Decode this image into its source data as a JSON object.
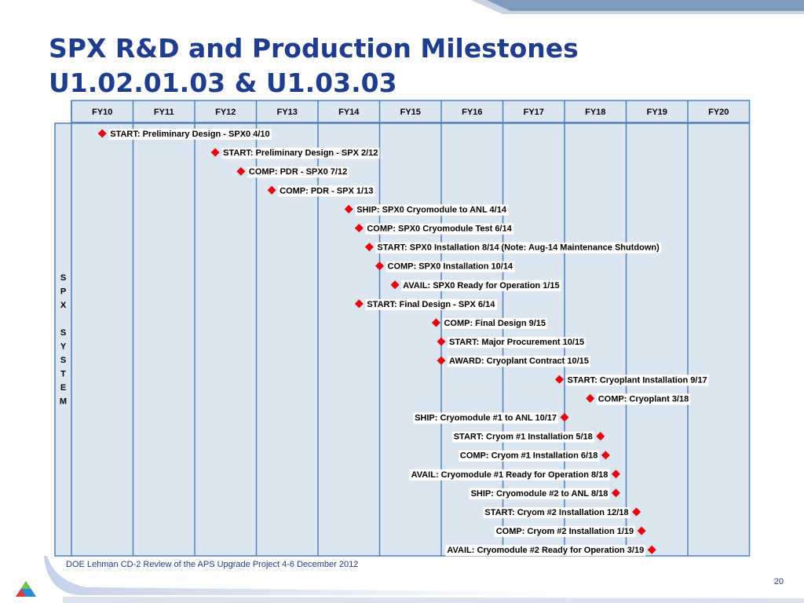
{
  "slide": {
    "title_line1": "SPX R&D and Production Milestones",
    "title_line2": "U1.02.01.03 & U1.03.03",
    "footer": "DOE Lehman CD-2 Review of the APS Upgrade Project    4-6 December  2012",
    "page_number": "20"
  },
  "chart_data": {
    "type": "gantt-milestones",
    "fiscal_years": [
      "FY10",
      "FY11",
      "FY12",
      "FY13",
      "FY14",
      "FY15",
      "FY16",
      "FY17",
      "FY18",
      "FY19",
      "FY20"
    ],
    "row_group_label": [
      "S",
      "P",
      "X",
      "",
      "S",
      "Y",
      "S",
      "T",
      "E",
      "M"
    ],
    "marker_color": "#e8000b",
    "milestones": [
      {
        "label": "START: Preliminary Design - SPX0 4/10",
        "date": "2010-04",
        "label_side": "right"
      },
      {
        "label": "START: Preliminary Design - SPX 2/12",
        "date": "2012-02",
        "label_side": "right"
      },
      {
        "label": "COMP: PDR - SPX0 7/12",
        "date": "2012-07",
        "label_side": "right"
      },
      {
        "label": "COMP: PDR - SPX 1/13",
        "date": "2013-01",
        "label_side": "right"
      },
      {
        "label": "SHIP: SPX0 Cryomodule to ANL 4/14",
        "date": "2014-04",
        "label_side": "right"
      },
      {
        "label": "COMP: SPX0 Cryomodule Test 6/14",
        "date": "2014-06",
        "label_side": "right"
      },
      {
        "label": "START: SPX0 Installation 8/14 (Note: Aug-14 Maintenance Shutdown)",
        "date": "2014-08",
        "label_side": "right"
      },
      {
        "label": "COMP: SPX0 Installation 10/14",
        "date": "2014-10",
        "label_side": "right"
      },
      {
        "label": "AVAIL: SPX0 Ready for Operation 1/15",
        "date": "2015-01",
        "label_side": "right"
      },
      {
        "label": "START: Final Design - SPX 6/14",
        "date": "2014-06",
        "label_side": "right"
      },
      {
        "label": "COMP: Final Design 9/15",
        "date": "2015-09",
        "label_side": "right"
      },
      {
        "label": "START: Major Procurement 10/15",
        "date": "2015-10",
        "label_side": "right"
      },
      {
        "label": "AWARD: Cryoplant Contract 10/15",
        "date": "2015-10",
        "label_side": "right"
      },
      {
        "label": "START: Cryoplant Installation 9/17",
        "date": "2017-09",
        "label_side": "right"
      },
      {
        "label": "COMP: Cryoplant 3/18",
        "date": "2018-03",
        "label_side": "right"
      },
      {
        "label": "SHIP: Cryomodule #1 to ANL 10/17",
        "date": "2017-10",
        "label_side": "left"
      },
      {
        "label": "START: Cryom #1 Installation 5/18",
        "date": "2018-05",
        "label_side": "left"
      },
      {
        "label": "COMP: Cryom #1 Installation 6/18",
        "date": "2018-06",
        "label_side": "left"
      },
      {
        "label": "AVAIL: Cryomodule #1 Ready for Operation 8/18",
        "date": "2018-08",
        "label_side": "left"
      },
      {
        "label": "SHIP: Cryomodule #2 to ANL 8/18",
        "date": "2018-08",
        "label_side": "left"
      },
      {
        "label": "START: Cryom #2 Installation 12/18",
        "date": "2018-12",
        "label_side": "left"
      },
      {
        "label": "COMP: Cryom #2 Installation 1/19",
        "date": "2019-01",
        "label_side": "left"
      },
      {
        "label": "AVAIL: Cryomodule #2 Ready for Operation 3/19",
        "date": "2019-03",
        "label_side": "left"
      }
    ]
  }
}
